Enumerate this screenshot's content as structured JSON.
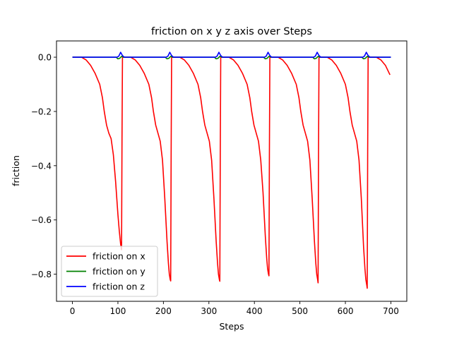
{
  "chart_data": {
    "type": "line",
    "title": "friction on x y z axis over Steps",
    "xlabel": "Steps",
    "ylabel": "friction",
    "xlim": [
      -35,
      735
    ],
    "ylim": [
      -0.9,
      0.06
    ],
    "xticks": [
      0,
      100,
      200,
      300,
      400,
      500,
      600,
      700
    ],
    "xtick_labels": [
      "0",
      "100",
      "200",
      "300",
      "400",
      "500",
      "600",
      "700"
    ],
    "yticks": [
      0.0,
      -0.2,
      -0.4,
      -0.6,
      -0.8
    ],
    "ytick_labels": [
      "0.0",
      "−0.2",
      "−0.4",
      "−0.6",
      "−0.8"
    ],
    "grid": false,
    "legend_position": "lower-left",
    "series": [
      {
        "name": "friction on x",
        "color": "#ff0000",
        "x": [
          0,
          20,
          30,
          40,
          50,
          60,
          66,
          70,
          75,
          80,
          85,
          90,
          95,
          100,
          103,
          106,
          107,
          108,
          109,
          110,
          128,
          138,
          148,
          158,
          168,
          174,
          178,
          183,
          188,
          193,
          198,
          203,
          208,
          211,
          213,
          214,
          215,
          216,
          217,
          218,
          236,
          246,
          256,
          266,
          276,
          282,
          286,
          291,
          296,
          301,
          306,
          311,
          316,
          319,
          321,
          322,
          323,
          324,
          325,
          326,
          344,
          354,
          364,
          374,
          384,
          390,
          394,
          399,
          404,
          409,
          414,
          419,
          424,
          427,
          429,
          430,
          431,
          432,
          433,
          434,
          452,
          462,
          472,
          482,
          492,
          498,
          502,
          507,
          512,
          517,
          522,
          527,
          532,
          535,
          537,
          538,
          539,
          540,
          541,
          542,
          560,
          570,
          580,
          590,
          600,
          606,
          610,
          615,
          620,
          625,
          630,
          635,
          640,
          643,
          645,
          646,
          647,
          648,
          649,
          650,
          668,
          678,
          688,
          698
        ],
        "y": [
          0,
          0,
          -0.01,
          -0.03,
          -0.06,
          -0.1,
          -0.15,
          -0.2,
          -0.25,
          -0.28,
          -0.3,
          -0.36,
          -0.46,
          -0.58,
          -0.64,
          -0.69,
          -0.7,
          -0.71,
          -0.3,
          0,
          0,
          -0.01,
          -0.03,
          -0.06,
          -0.1,
          -0.15,
          -0.2,
          -0.25,
          -0.28,
          -0.31,
          -0.38,
          -0.52,
          -0.68,
          -0.76,
          -0.8,
          -0.81,
          -0.82,
          -0.825,
          -0.35,
          0,
          0,
          -0.01,
          -0.03,
          -0.06,
          -0.1,
          -0.15,
          -0.2,
          -0.25,
          -0.28,
          -0.31,
          -0.38,
          -0.52,
          -0.68,
          -0.76,
          -0.8,
          -0.81,
          -0.82,
          -0.826,
          -0.35,
          0,
          0,
          -0.01,
          -0.03,
          -0.06,
          -0.1,
          -0.15,
          -0.2,
          -0.25,
          -0.28,
          -0.31,
          -0.38,
          -0.5,
          -0.66,
          -0.74,
          -0.78,
          -0.79,
          -0.8,
          -0.806,
          -0.35,
          0,
          0,
          -0.01,
          -0.03,
          -0.06,
          -0.1,
          -0.15,
          -0.2,
          -0.25,
          -0.28,
          -0.31,
          -0.38,
          -0.52,
          -0.68,
          -0.76,
          -0.8,
          -0.81,
          -0.82,
          -0.832,
          -0.35,
          0,
          0,
          -0.01,
          -0.03,
          -0.06,
          -0.1,
          -0.15,
          -0.2,
          -0.25,
          -0.28,
          -0.31,
          -0.38,
          -0.52,
          -0.7,
          -0.78,
          -0.82,
          -0.83,
          -0.84,
          -0.852,
          -0.35,
          0,
          0,
          -0.01,
          -0.03,
          -0.065
        ]
      },
      {
        "name": "friction on y",
        "color": "#008000",
        "x": [
          0,
          96,
          100,
          104,
          108,
          112,
          204,
          208,
          212,
          216,
          220,
          312,
          316,
          320,
          324,
          328,
          420,
          424,
          428,
          432,
          436,
          528,
          532,
          536,
          540,
          544,
          636,
          640,
          644,
          648,
          652,
          700
        ],
        "y": [
          0,
          0,
          -0.006,
          -0.004,
          0.003,
          0,
          0,
          -0.006,
          -0.004,
          0.003,
          0,
          0,
          -0.006,
          -0.004,
          0.003,
          0,
          0,
          -0.006,
          -0.004,
          0.003,
          0,
          0,
          -0.006,
          -0.004,
          0.003,
          0,
          0,
          -0.006,
          -0.004,
          0.003,
          0,
          0
        ]
      },
      {
        "name": "friction on z",
        "color": "#0000ff",
        "x": [
          0,
          98,
          102,
          106,
          110,
          114,
          206,
          210,
          214,
          218,
          222,
          314,
          318,
          322,
          326,
          330,
          422,
          426,
          430,
          434,
          438,
          530,
          534,
          538,
          542,
          546,
          638,
          642,
          646,
          650,
          654,
          700
        ],
        "y": [
          0,
          0,
          0.004,
          0.018,
          0.006,
          0,
          0,
          0.004,
          0.018,
          0.006,
          0,
          0,
          0.004,
          0.018,
          0.006,
          0,
          0,
          0.004,
          0.018,
          0.006,
          0,
          0,
          0.004,
          0.018,
          0.006,
          0,
          0,
          0.004,
          0.018,
          0.006,
          0,
          0
        ]
      }
    ]
  }
}
